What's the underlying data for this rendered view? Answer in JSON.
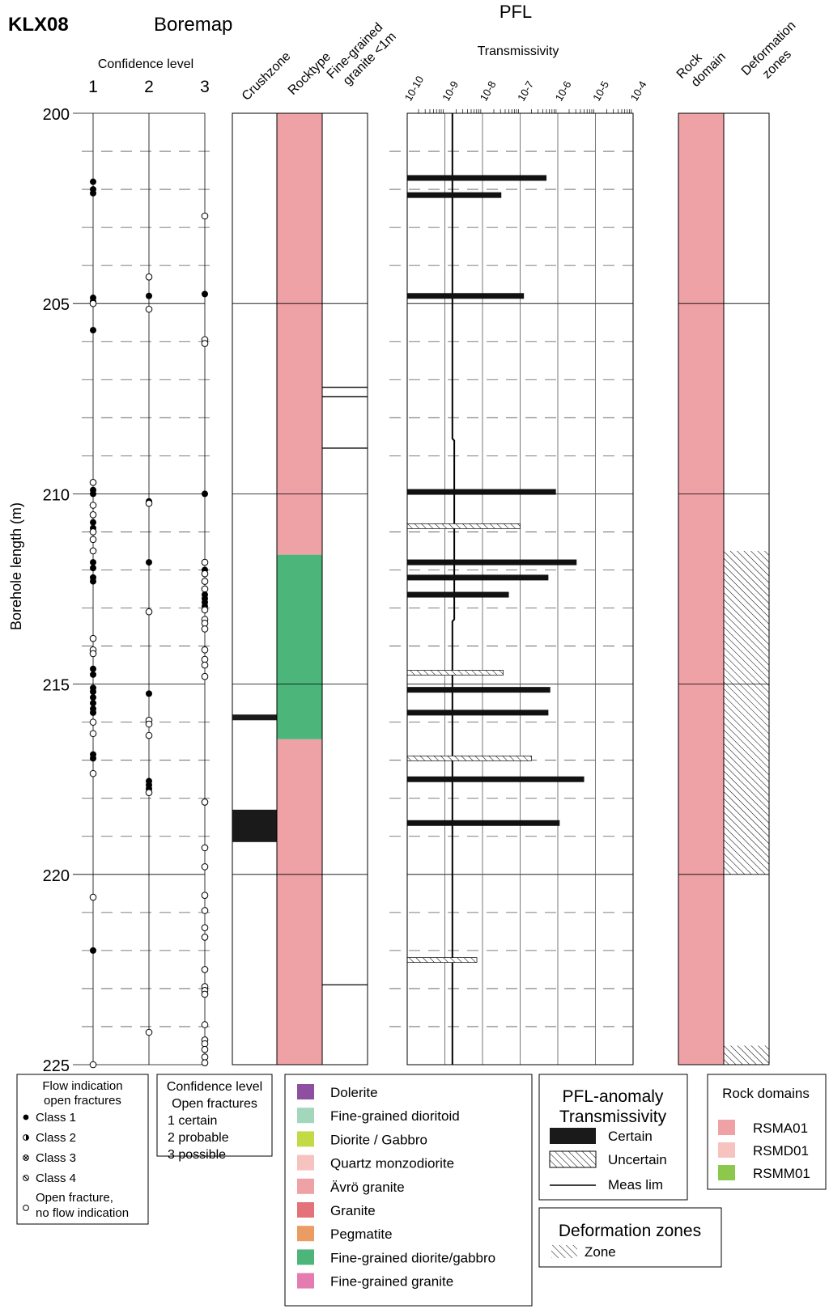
{
  "header": {
    "borehole": "KLX08",
    "boremap_title": "Boremap",
    "pfl_title": "PFL",
    "confidence_title": "Confidence level",
    "confidence_levels": [
      "1",
      "2",
      "3"
    ],
    "transmissivity_title": "Transmissivity"
  },
  "column_headers": {
    "crushzone": "Crushzone",
    "rocktype": "Rocktype",
    "fine_grained_1": "Fine-grained",
    "fine_grained_2": "granite <1m",
    "rock_domain_1": "Rock",
    "rock_domain_2": "domain",
    "deformation_1": "Deformation",
    "deformation_2": "zones"
  },
  "colors": {
    "avro_granite": "#eea2a6",
    "fine_grained_diorite_gabbro": "#4cb67a",
    "crushzone_fill": "#1a1a1a",
    "rsma01": "#eea2a6"
  },
  "chart_data": {
    "type": "table",
    "depth_axis": {
      "label": "Borehole length (m)",
      "range": [
        200,
        225
      ],
      "major_ticks": [
        200,
        205,
        210,
        215,
        220,
        225
      ],
      "dashed_interval": 1
    },
    "transmissivity_axis": {
      "scale": "log",
      "exponents": [
        -10,
        -9,
        -8,
        -7,
        -6,
        -5,
        -4
      ],
      "tick_labels": [
        "10-10",
        "10-9",
        "10-8",
        "10-7",
        "10-6",
        "10-5",
        "10-4"
      ]
    },
    "boremap_fractures": [
      {
        "depth": 201.8,
        "level": 1,
        "class": "class1"
      },
      {
        "depth": 202.0,
        "level": 1,
        "class": "class1"
      },
      {
        "depth": 202.1,
        "level": 1,
        "class": "class1"
      },
      {
        "depth": 202.7,
        "level": 3,
        "class": "open"
      },
      {
        "depth": 204.3,
        "level": 2,
        "class": "open"
      },
      {
        "depth": 204.8,
        "level": 2,
        "class": "class1"
      },
      {
        "depth": 204.75,
        "level": 3,
        "class": "class1"
      },
      {
        "depth": 204.85,
        "level": 1,
        "class": "class1"
      },
      {
        "depth": 204.95,
        "level": 1,
        "class": "class1"
      },
      {
        "depth": 205.0,
        "level": 1,
        "class": "open"
      },
      {
        "depth": 205.15,
        "level": 2,
        "class": "open"
      },
      {
        "depth": 205.7,
        "level": 1,
        "class": "class1"
      },
      {
        "depth": 205.95,
        "level": 3,
        "class": "open"
      },
      {
        "depth": 206.05,
        "level": 3,
        "class": "open"
      },
      {
        "depth": 209.7,
        "level": 1,
        "class": "open"
      },
      {
        "depth": 209.9,
        "level": 1,
        "class": "class1"
      },
      {
        "depth": 210.0,
        "level": 1,
        "class": "class1"
      },
      {
        "depth": 210.0,
        "level": 3,
        "class": "class1"
      },
      {
        "depth": 210.2,
        "level": 2,
        "class": "class1"
      },
      {
        "depth": 210.25,
        "level": 2,
        "class": "open"
      },
      {
        "depth": 210.3,
        "level": 1,
        "class": "open"
      },
      {
        "depth": 210.55,
        "level": 1,
        "class": "open"
      },
      {
        "depth": 210.75,
        "level": 1,
        "class": "class1"
      },
      {
        "depth": 210.9,
        "level": 1,
        "class": "class1"
      },
      {
        "depth": 211.0,
        "level": 1,
        "class": "open"
      },
      {
        "depth": 211.2,
        "level": 1,
        "class": "open"
      },
      {
        "depth": 211.5,
        "level": 1,
        "class": "open"
      },
      {
        "depth": 211.8,
        "level": 1,
        "class": "class1"
      },
      {
        "depth": 211.8,
        "level": 2,
        "class": "class1"
      },
      {
        "depth": 211.8,
        "level": 3,
        "class": "open"
      },
      {
        "depth": 211.95,
        "level": 1,
        "class": "class1"
      },
      {
        "depth": 212.0,
        "level": 3,
        "class": "class1"
      },
      {
        "depth": 212.1,
        "level": 3,
        "class": "open"
      },
      {
        "depth": 212.2,
        "level": 1,
        "class": "class1"
      },
      {
        "depth": 212.3,
        "level": 1,
        "class": "class1"
      },
      {
        "depth": 212.3,
        "level": 3,
        "class": "open"
      },
      {
        "depth": 212.5,
        "level": 3,
        "class": "open"
      },
      {
        "depth": 212.65,
        "level": 3,
        "class": "class1"
      },
      {
        "depth": 212.75,
        "level": 3,
        "class": "class1"
      },
      {
        "depth": 212.85,
        "level": 3,
        "class": "class1"
      },
      {
        "depth": 212.95,
        "level": 3,
        "class": "class1"
      },
      {
        "depth": 213.05,
        "level": 3,
        "class": "open"
      },
      {
        "depth": 213.1,
        "level": 2,
        "class": "open"
      },
      {
        "depth": 213.3,
        "level": 3,
        "class": "open"
      },
      {
        "depth": 213.4,
        "level": 3,
        "class": "open"
      },
      {
        "depth": 213.55,
        "level": 3,
        "class": "open"
      },
      {
        "depth": 213.8,
        "level": 1,
        "class": "open"
      },
      {
        "depth": 214.1,
        "level": 1,
        "class": "open"
      },
      {
        "depth": 214.2,
        "level": 1,
        "class": "open"
      },
      {
        "depth": 214.1,
        "level": 3,
        "class": "open"
      },
      {
        "depth": 214.35,
        "level": 3,
        "class": "open"
      },
      {
        "depth": 214.5,
        "level": 3,
        "class": "open"
      },
      {
        "depth": 214.6,
        "level": 1,
        "class": "class1"
      },
      {
        "depth": 214.75,
        "level": 1,
        "class": "class1"
      },
      {
        "depth": 214.8,
        "level": 3,
        "class": "open"
      },
      {
        "depth": 215.1,
        "level": 1,
        "class": "class1"
      },
      {
        "depth": 215.2,
        "level": 1,
        "class": "class1"
      },
      {
        "depth": 215.25,
        "level": 2,
        "class": "class1"
      },
      {
        "depth": 215.35,
        "level": 1,
        "class": "class1"
      },
      {
        "depth": 215.5,
        "level": 1,
        "class": "class1"
      },
      {
        "depth": 215.65,
        "level": 1,
        "class": "class1"
      },
      {
        "depth": 215.75,
        "level": 1,
        "class": "class1"
      },
      {
        "depth": 215.95,
        "level": 2,
        "class": "open"
      },
      {
        "depth": 216.05,
        "level": 2,
        "class": "open"
      },
      {
        "depth": 216.0,
        "level": 1,
        "class": "open"
      },
      {
        "depth": 216.3,
        "level": 1,
        "class": "open"
      },
      {
        "depth": 216.35,
        "level": 2,
        "class": "open"
      },
      {
        "depth": 216.85,
        "level": 1,
        "class": "class1"
      },
      {
        "depth": 216.95,
        "level": 1,
        "class": "class1"
      },
      {
        "depth": 217.35,
        "level": 1,
        "class": "open"
      },
      {
        "depth": 217.55,
        "level": 2,
        "class": "class1"
      },
      {
        "depth": 217.65,
        "level": 2,
        "class": "class1"
      },
      {
        "depth": 217.75,
        "level": 2,
        "class": "class1"
      },
      {
        "depth": 217.85,
        "level": 2,
        "class": "open"
      },
      {
        "depth": 218.1,
        "level": 3,
        "class": "open"
      },
      {
        "depth": 219.3,
        "level": 3,
        "class": "open"
      },
      {
        "depth": 219.8,
        "level": 3,
        "class": "open"
      },
      {
        "depth": 220.6,
        "level": 1,
        "class": "open"
      },
      {
        "depth": 220.55,
        "level": 3,
        "class": "open"
      },
      {
        "depth": 220.95,
        "level": 3,
        "class": "open"
      },
      {
        "depth": 221.4,
        "level": 3,
        "class": "open"
      },
      {
        "depth": 221.65,
        "level": 3,
        "class": "open"
      },
      {
        "depth": 222.0,
        "level": 1,
        "class": "class1"
      },
      {
        "depth": 222.5,
        "level": 3,
        "class": "open"
      },
      {
        "depth": 222.95,
        "level": 3,
        "class": "open"
      },
      {
        "depth": 223.05,
        "level": 3,
        "class": "open"
      },
      {
        "depth": 223.15,
        "level": 3,
        "class": "open"
      },
      {
        "depth": 223.95,
        "level": 3,
        "class": "open"
      },
      {
        "depth": 224.15,
        "level": 2,
        "class": "open"
      },
      {
        "depth": 224.35,
        "level": 3,
        "class": "open"
      },
      {
        "depth": 224.45,
        "level": 3,
        "class": "open"
      },
      {
        "depth": 224.6,
        "level": 3,
        "class": "open"
      },
      {
        "depth": 224.8,
        "level": 3,
        "class": "open"
      },
      {
        "depth": 224.95,
        "level": 3,
        "class": "open"
      },
      {
        "depth": 225.0,
        "level": 1,
        "class": "open"
      }
    ],
    "crushzones": [
      {
        "from": 215.8,
        "to": 215.95
      },
      {
        "from": 218.3,
        "to": 219.15
      }
    ],
    "rocktypes": [
      {
        "from": 200,
        "to": 211.6,
        "rock": "Ävrö granite"
      },
      {
        "from": 211.6,
        "to": 216.45,
        "rock": "Fine-grained diorite/gabbro"
      },
      {
        "from": 216.45,
        "to": 225,
        "rock": "Ävrö granite"
      }
    ],
    "fine_grained_granite_lines": [
      207.2,
      207.45,
      208.8,
      222.9
    ],
    "pfl_anomalies": [
      {
        "depth": 201.7,
        "log_t": -6.3,
        "type": "certain"
      },
      {
        "depth": 202.15,
        "log_t": -7.5,
        "type": "certain"
      },
      {
        "depth": 204.8,
        "log_t": -6.9,
        "type": "certain"
      },
      {
        "depth": 209.95,
        "log_t": -6.05,
        "type": "certain"
      },
      {
        "depth": 210.85,
        "log_t": -7.0,
        "type": "uncertain"
      },
      {
        "depth": 211.8,
        "log_t": -5.5,
        "type": "certain"
      },
      {
        "depth": 212.2,
        "log_t": -6.25,
        "type": "certain"
      },
      {
        "depth": 212.65,
        "log_t": -7.3,
        "type": "certain"
      },
      {
        "depth": 214.7,
        "log_t": -7.45,
        "type": "uncertain"
      },
      {
        "depth": 215.15,
        "log_t": -6.2,
        "type": "certain"
      },
      {
        "depth": 215.75,
        "log_t": -6.25,
        "type": "certain"
      },
      {
        "depth": 216.95,
        "log_t": -6.7,
        "type": "uncertain"
      },
      {
        "depth": 217.5,
        "log_t": -5.3,
        "type": "certain"
      },
      {
        "depth": 218.65,
        "log_t": -5.95,
        "type": "certain"
      },
      {
        "depth": 222.25,
        "log_t": -8.15,
        "type": "uncertain"
      }
    ],
    "measurement_limit": [
      {
        "depth": 200.0,
        "log_t": -8.8
      },
      {
        "depth": 208.55,
        "log_t": -8.8
      },
      {
        "depth": 208.6,
        "log_t": -8.75
      },
      {
        "depth": 213.3,
        "log_t": -8.75
      },
      {
        "depth": 213.35,
        "log_t": -8.8
      },
      {
        "depth": 225.0,
        "log_t": -8.8
      }
    ],
    "rock_domains": [
      {
        "from": 200,
        "to": 225,
        "domain": "RSMA01"
      }
    ],
    "deformation_zones": [
      {
        "from": 211.5,
        "to": 220.0
      },
      {
        "from": 224.5,
        "to": 225.0
      }
    ]
  },
  "legends": {
    "flow": {
      "title_1": "Flow indication",
      "title_2": "open fractures",
      "class1": "Class 1",
      "class2": "Class 2",
      "class3": "Class 3",
      "class4": "Class 4",
      "open_1": "Open fracture,",
      "open_2": "no flow indication"
    },
    "confidence": {
      "title_1": "Confidence level",
      "title_2": "Open fractures",
      "l1": "1 certain",
      "l2": "2 probable",
      "l3": "3 possible"
    },
    "rocktype": [
      {
        "label": "Dolerite",
        "color": "#8f4fa0"
      },
      {
        "label": "Fine-grained dioritoid",
        "color": "#a3d7bd"
      },
      {
        "label": "Diorite / Gabbro",
        "color": "#c4d946"
      },
      {
        "label": "Quartz monzodiorite",
        "color": "#f7c3bf"
      },
      {
        "label": "Ävrö granite",
        "color": "#eea2a6"
      },
      {
        "label": "Granite",
        "color": "#e3727a"
      },
      {
        "label": "Pegmatite",
        "color": "#eb9c62"
      },
      {
        "label": "Fine-grained diorite/gabbro",
        "color": "#4cb67a"
      },
      {
        "label": "Fine-grained granite",
        "color": "#e57cb0"
      }
    ],
    "pfl": {
      "title_1": "PFL-anomaly",
      "title_2": "Transmissivity",
      "certain": "Certain",
      "uncertain": "Uncertain",
      "meas_lim": "Meas lim"
    },
    "deformation": {
      "title": "Deformation zones",
      "zone": "Zone"
    },
    "rock_domains": {
      "title": "Rock domains",
      "items": [
        {
          "label": "RSMA01",
          "color": "#eea2a6"
        },
        {
          "label": "RSMD01",
          "color": "#f7c3bf"
        },
        {
          "label": "RSMM01",
          "color": "#8cc84b"
        }
      ]
    }
  }
}
